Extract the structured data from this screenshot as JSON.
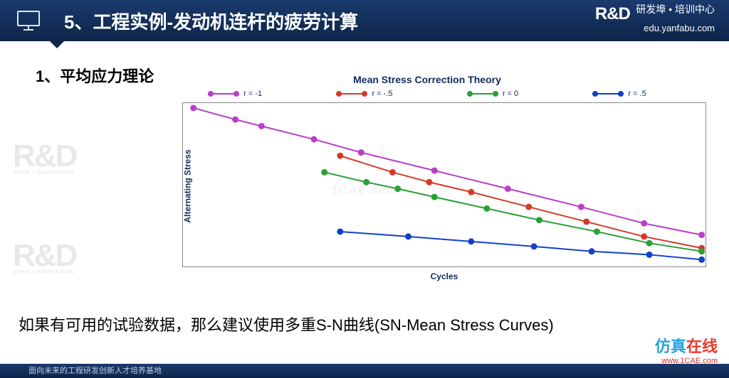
{
  "header": {
    "title": "5、工程实例-发动机连杆的疲劳计算",
    "logo_rd": "R&D",
    "logo_sub": "OPEN • INNOVATION",
    "logo_cn": "研发埠 • 培训中心",
    "logo_url": "edu.yanfabu.com"
  },
  "subtitle": "1、平均应力理论",
  "chart": {
    "title": "Mean Stress Correction Theory",
    "xlabel": "Cycles",
    "ylabel": "Alternating Stress",
    "type": "line",
    "plot_border_color": "#888888",
    "background_color": "#ffffff",
    "title_color": "#102a5c",
    "label_color": "#102a5c",
    "title_fontsize": 14,
    "label_fontsize": 12,
    "xrange": [
      0,
      100
    ],
    "yrange": [
      0,
      100
    ],
    "line_width": 2,
    "marker_shape": "circle",
    "marker_size": 8,
    "series": [
      {
        "label": "r = -1",
        "color": "#b93ec9",
        "points": [
          {
            "x": 2,
            "y": 97
          },
          {
            "x": 10,
            "y": 90
          },
          {
            "x": 15,
            "y": 86
          },
          {
            "x": 25,
            "y": 78
          },
          {
            "x": 34,
            "y": 70
          },
          {
            "x": 48,
            "y": 59
          },
          {
            "x": 62,
            "y": 48
          },
          {
            "x": 76,
            "y": 37
          },
          {
            "x": 88,
            "y": 27
          },
          {
            "x": 99,
            "y": 20
          }
        ]
      },
      {
        "label": "r = -.5",
        "color": "#d43a2a",
        "points": [
          {
            "x": 30,
            "y": 68
          },
          {
            "x": 40,
            "y": 58
          },
          {
            "x": 47,
            "y": 52
          },
          {
            "x": 55,
            "y": 46
          },
          {
            "x": 66,
            "y": 37
          },
          {
            "x": 77,
            "y": 28
          },
          {
            "x": 88,
            "y": 19
          },
          {
            "x": 99,
            "y": 12
          }
        ]
      },
      {
        "label": "r = 0",
        "color": "#2aa037",
        "points": [
          {
            "x": 27,
            "y": 58
          },
          {
            "x": 35,
            "y": 52
          },
          {
            "x": 41,
            "y": 48
          },
          {
            "x": 48,
            "y": 43
          },
          {
            "x": 58,
            "y": 36
          },
          {
            "x": 68,
            "y": 29
          },
          {
            "x": 79,
            "y": 22
          },
          {
            "x": 89,
            "y": 15
          },
          {
            "x": 99,
            "y": 10
          }
        ]
      },
      {
        "label": "r = .5",
        "color": "#1342c9",
        "points": [
          {
            "x": 30,
            "y": 22
          },
          {
            "x": 43,
            "y": 19
          },
          {
            "x": 55,
            "y": 16
          },
          {
            "x": 67,
            "y": 13
          },
          {
            "x": 78,
            "y": 10
          },
          {
            "x": 89,
            "y": 8
          },
          {
            "x": 99,
            "y": 5
          }
        ]
      }
    ]
  },
  "body_text": "如果有可用的试验数据，那么建议使用多重S-N曲线(SN-Mean Stress Curves)",
  "footer_text": "面向未来的工程研发创新人才培养基地",
  "watermarks": {
    "center": "1CAE.com",
    "cn_left": "仿真",
    "cn_right": "在线",
    "url": "www.1CAE.com",
    "rd": "R&D",
    "rd_sub": "OPEN • INNOVATION"
  }
}
